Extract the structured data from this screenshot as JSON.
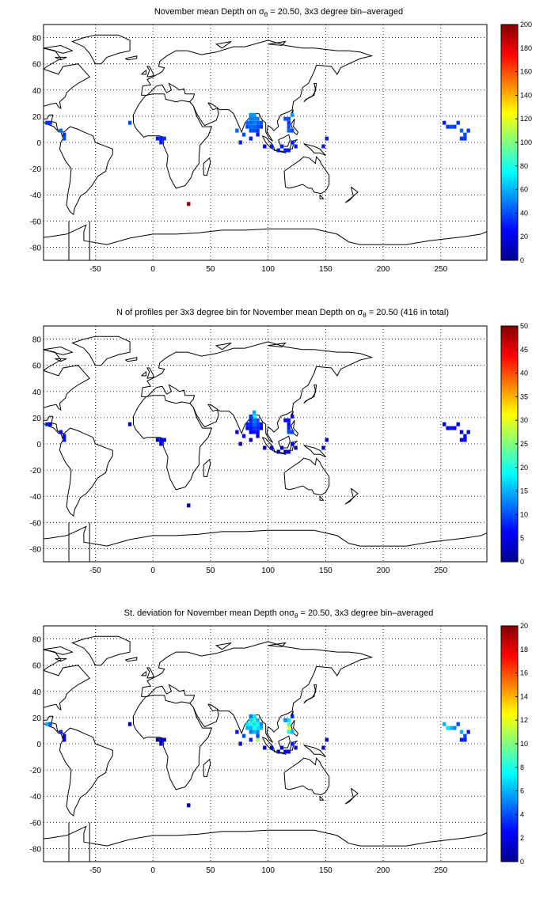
{
  "panels": [
    {
      "title_pre": "November mean Depth on ",
      "title_sym": "σ",
      "title_sub": "θ",
      "title_post": " = 20.50, 3x3 degree bin–averaged",
      "colorbar_ticks": [
        "0",
        "20",
        "40",
        "60",
        "80",
        "100",
        "120",
        "140",
        "160",
        "180",
        "200"
      ]
    },
    {
      "title_pre": "N of profiles per 3x3 degree bin for November mean Depth on ",
      "title_sym": "σ",
      "title_sub": "θ",
      "title_post": " = 20.50 (416 in total)",
      "colorbar_ticks": [
        "0",
        "5",
        "10",
        "15",
        "20",
        "25",
        "30",
        "35",
        "40",
        "45",
        "50"
      ]
    },
    {
      "title_pre": "St. deviation for November mean Depth on",
      "title_sym": "σ",
      "title_sub": "θ",
      "title_post": " = 20.50, 3x3 degree bin–averaged",
      "colorbar_ticks": [
        "0",
        "2",
        "4",
        "6",
        "8",
        "10",
        "12",
        "14",
        "16",
        "18",
        "20"
      ]
    }
  ],
  "x_ticks": [
    "-50",
    "0",
    "50",
    "100",
    "150",
    "200",
    "250"
  ],
  "y_ticks": [
    "80",
    "60",
    "40",
    "20",
    "0",
    "-20",
    "-40",
    "-60",
    "-80"
  ],
  "chart_data": [
    {
      "type": "heatmap",
      "title": "November mean Depth on σθ = 20.50, 3x3 degree bin–averaged",
      "colormap": "jet",
      "xlim": [
        -95,
        290
      ],
      "ylim": [
        -90,
        90
      ],
      "x_ticks": [
        -50,
        0,
        50,
        100,
        150,
        200,
        250
      ],
      "y_ticks": [
        80,
        60,
        40,
        20,
        0,
        -20,
        -40,
        -60,
        -80
      ],
      "clim": [
        0,
        200
      ],
      "grid": true,
      "cells": [
        [
          -92,
          15,
          35
        ],
        [
          -89,
          15,
          35
        ],
        [
          -80,
          9,
          45
        ],
        [
          -77,
          3,
          40
        ],
        [
          -77,
          6,
          35
        ],
        [
          -20,
          15,
          40
        ],
        [
          4,
          3,
          30
        ],
        [
          7,
          3,
          30
        ],
        [
          10,
          3,
          35
        ],
        [
          7,
          0,
          30
        ],
        [
          31,
          -47,
          195
        ],
        [
          73,
          9,
          45
        ],
        [
          76,
          0,
          30
        ],
        [
          79,
          6,
          40
        ],
        [
          82,
          12,
          40
        ],
        [
          82,
          15,
          45
        ],
        [
          85,
          21,
          55
        ],
        [
          85,
          18,
          50
        ],
        [
          85,
          15,
          45
        ],
        [
          85,
          12,
          45
        ],
        [
          85,
          9,
          40
        ],
        [
          88,
          21,
          55
        ],
        [
          88,
          18,
          50
        ],
        [
          88,
          15,
          50
        ],
        [
          88,
          12,
          45
        ],
        [
          88,
          9,
          40
        ],
        [
          91,
          18,
          50
        ],
        [
          91,
          15,
          45
        ],
        [
          91,
          12,
          40
        ],
        [
          91,
          9,
          35
        ],
        [
          94,
          15,
          40
        ],
        [
          94,
          12,
          35
        ],
        [
          91,
          6,
          30
        ],
        [
          85,
          3,
          30
        ],
        [
          97,
          -3,
          25
        ],
        [
          103,
          -3,
          30
        ],
        [
          109,
          -6,
          30
        ],
        [
          112,
          -3,
          30
        ],
        [
          115,
          -6,
          30
        ],
        [
          118,
          -6,
          30
        ],
        [
          118,
          9,
          45
        ],
        [
          118,
          12,
          40
        ],
        [
          121,
          9,
          40
        ],
        [
          118,
          15,
          35
        ],
        [
          121,
          21,
          55
        ],
        [
          118,
          18,
          40
        ],
        [
          115,
          18,
          40
        ],
        [
          121,
          0,
          30
        ],
        [
          124,
          -3,
          30
        ],
        [
          151,
          3,
          30
        ],
        [
          148,
          -3,
          30
        ],
        [
          253,
          15,
          30
        ],
        [
          256,
          12,
          35
        ],
        [
          259,
          12,
          40
        ],
        [
          262,
          12,
          35
        ],
        [
          265,
          15,
          35
        ],
        [
          268,
          3,
          35
        ],
        [
          271,
          6,
          40
        ],
        [
          271,
          3,
          35
        ],
        [
          274,
          9,
          35
        ],
        [
          268,
          9,
          45
        ]
      ]
    },
    {
      "type": "heatmap",
      "title": "N of profiles per 3x3 degree bin for November mean Depth on σθ = 20.50 (416 in total)",
      "colormap": "jet",
      "xlim": [
        -95,
        290
      ],
      "ylim": [
        -90,
        90
      ],
      "x_ticks": [
        -50,
        0,
        50,
        100,
        150,
        200,
        250
      ],
      "y_ticks": [
        80,
        60,
        40,
        20,
        0,
        -20,
        -40,
        -60,
        -80
      ],
      "clim": [
        0,
        50
      ],
      "grid": true,
      "total_profiles": 416,
      "cells": [
        [
          -92,
          15,
          8
        ],
        [
          -89,
          15,
          5
        ],
        [
          -80,
          9,
          6
        ],
        [
          -77,
          3,
          7
        ],
        [
          -77,
          6,
          6
        ],
        [
          -20,
          15,
          3
        ],
        [
          4,
          3,
          5
        ],
        [
          7,
          3,
          5
        ],
        [
          10,
          3,
          6
        ],
        [
          7,
          0,
          5
        ],
        [
          31,
          -47,
          3
        ],
        [
          73,
          9,
          6
        ],
        [
          76,
          0,
          4
        ],
        [
          79,
          6,
          5
        ],
        [
          82,
          12,
          7
        ],
        [
          82,
          15,
          8
        ],
        [
          85,
          21,
          9
        ],
        [
          85,
          18,
          8
        ],
        [
          85,
          15,
          8
        ],
        [
          85,
          12,
          7
        ],
        [
          85,
          9,
          6
        ],
        [
          88,
          24,
          14
        ],
        [
          88,
          21,
          18
        ],
        [
          88,
          18,
          12
        ],
        [
          88,
          15,
          11
        ],
        [
          88,
          12,
          9
        ],
        [
          88,
          9,
          7
        ],
        [
          91,
          18,
          10
        ],
        [
          91,
          15,
          9
        ],
        [
          91,
          12,
          8
        ],
        [
          91,
          9,
          6
        ],
        [
          94,
          15,
          7
        ],
        [
          94,
          12,
          6
        ],
        [
          91,
          6,
          4
        ],
        [
          85,
          3,
          4
        ],
        [
          97,
          -3,
          3
        ],
        [
          103,
          -3,
          4
        ],
        [
          109,
          -6,
          3
        ],
        [
          112,
          -3,
          4
        ],
        [
          115,
          -6,
          3
        ],
        [
          118,
          -6,
          3
        ],
        [
          118,
          9,
          10
        ],
        [
          118,
          12,
          8
        ],
        [
          121,
          9,
          9
        ],
        [
          118,
          15,
          7
        ],
        [
          121,
          21,
          6
        ],
        [
          118,
          18,
          7
        ],
        [
          115,
          18,
          6
        ],
        [
          121,
          0,
          4
        ],
        [
          124,
          -3,
          3
        ],
        [
          151,
          3,
          4
        ],
        [
          148,
          -3,
          3
        ],
        [
          253,
          15,
          5
        ],
        [
          256,
          12,
          6
        ],
        [
          259,
          12,
          7
        ],
        [
          262,
          12,
          6
        ],
        [
          265,
          15,
          5
        ],
        [
          268,
          3,
          6
        ],
        [
          271,
          6,
          7
        ],
        [
          271,
          3,
          6
        ],
        [
          274,
          9,
          6
        ],
        [
          268,
          9,
          5
        ]
      ]
    },
    {
      "type": "heatmap",
      "title": "St. deviation for November mean Depth on σθ = 20.50, 3x3 degree bin–averaged",
      "colormap": "jet",
      "xlim": [
        -95,
        290
      ],
      "ylim": [
        -90,
        90
      ],
      "x_ticks": [
        -50,
        0,
        50,
        100,
        150,
        200,
        250
      ],
      "y_ticks": [
        80,
        60,
        40,
        20,
        0,
        -20,
        -40,
        -60,
        -80
      ],
      "clim": [
        0,
        20
      ],
      "grid": true,
      "cells": [
        [
          -92,
          15,
          6
        ],
        [
          -89,
          15,
          4
        ],
        [
          -80,
          9,
          3
        ],
        [
          -77,
          3,
          2
        ],
        [
          -77,
          6,
          2
        ],
        [
          -20,
          15,
          1
        ],
        [
          4,
          3,
          1
        ],
        [
          7,
          3,
          1
        ],
        [
          10,
          3,
          2
        ],
        [
          7,
          0,
          1
        ],
        [
          31,
          -47,
          1
        ],
        [
          73,
          9,
          3
        ],
        [
          76,
          0,
          2
        ],
        [
          79,
          6,
          4
        ],
        [
          82,
          12,
          6
        ],
        [
          82,
          15,
          7
        ],
        [
          85,
          21,
          5
        ],
        [
          85,
          18,
          7
        ],
        [
          85,
          15,
          8
        ],
        [
          85,
          12,
          6
        ],
        [
          85,
          9,
          5
        ],
        [
          88,
          21,
          7
        ],
        [
          88,
          18,
          9
        ],
        [
          88,
          15,
          7
        ],
        [
          88,
          12,
          8
        ],
        [
          88,
          9,
          6
        ],
        [
          91,
          18,
          6
        ],
        [
          91,
          15,
          8
        ],
        [
          91,
          12,
          7
        ],
        [
          91,
          9,
          5
        ],
        [
          91,
          3,
          11
        ],
        [
          94,
          15,
          5
        ],
        [
          94,
          12,
          6
        ],
        [
          91,
          6,
          4
        ],
        [
          85,
          3,
          3
        ],
        [
          97,
          -3,
          2
        ],
        [
          103,
          -3,
          2
        ],
        [
          109,
          -6,
          2
        ],
        [
          112,
          -3,
          2
        ],
        [
          115,
          -6,
          2
        ],
        [
          118,
          -6,
          2
        ],
        [
          118,
          9,
          8
        ],
        [
          118,
          12,
          12
        ],
        [
          121,
          9,
          6
        ],
        [
          118,
          15,
          9
        ],
        [
          121,
          21,
          3
        ],
        [
          118,
          18,
          7
        ],
        [
          115,
          18,
          5
        ],
        [
          121,
          0,
          3
        ],
        [
          124,
          -3,
          2
        ],
        [
          151,
          3,
          2
        ],
        [
          148,
          -3,
          2
        ],
        [
          253,
          15,
          6
        ],
        [
          256,
          12,
          7
        ],
        [
          259,
          12,
          6
        ],
        [
          262,
          12,
          5
        ],
        [
          265,
          15,
          4
        ],
        [
          268,
          3,
          3
        ],
        [
          271,
          6,
          4
        ],
        [
          271,
          3,
          3
        ],
        [
          274,
          9,
          3
        ],
        [
          268,
          9,
          6
        ]
      ]
    }
  ]
}
